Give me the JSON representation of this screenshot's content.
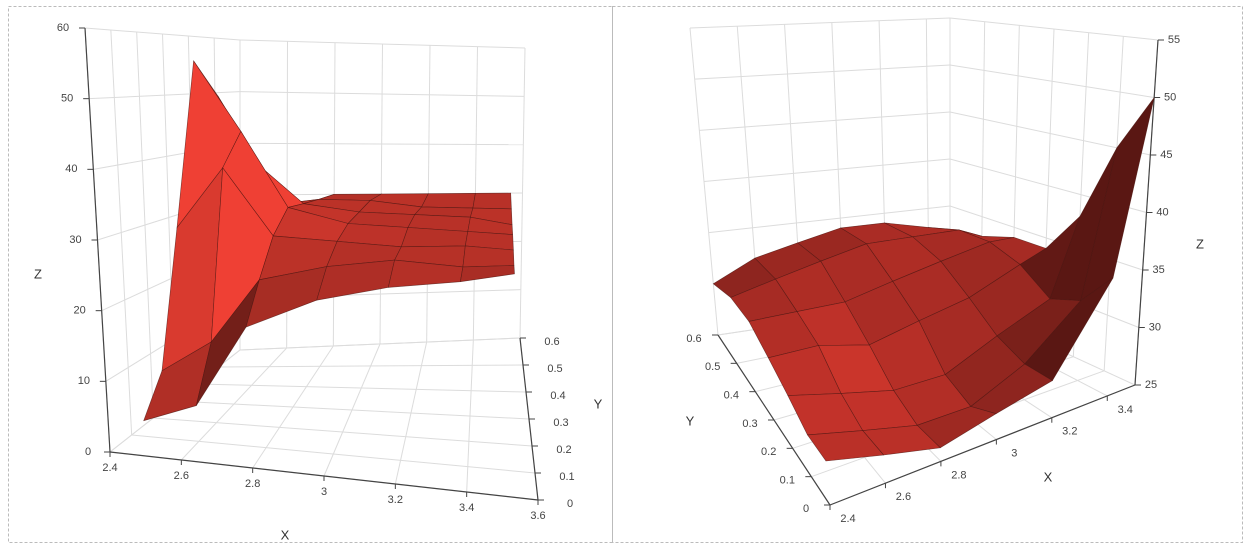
{
  "chart_data": [
    {
      "type": "surface",
      "xlabel": "X",
      "ylabel": "Y",
      "zlabel": "Z",
      "color": "#d93a2f",
      "grid": true,
      "xlim": [
        2.4,
        3.6
      ],
      "ylim": [
        0,
        0.6
      ],
      "zlim": [
        0,
        60
      ],
      "xticks": [
        2.4,
        2.6,
        2.8,
        3,
        3.2,
        3.4,
        3.6
      ],
      "yticks": [
        0,
        0.1,
        0.2,
        0.3,
        0.4,
        0.5,
        0.6
      ],
      "zticks": [
        0,
        10,
        20,
        30,
        40,
        50,
        60
      ],
      "x": [
        2.5,
        2.65,
        2.8,
        3,
        3.2,
        3.4,
        3.55
      ],
      "y": [
        0,
        0.1,
        0.2,
        0.3,
        0.4,
        0.5,
        0.6
      ],
      "z": [
        [
          5,
          8,
          20,
          25,
          28,
          30,
          32
        ],
        [
          10,
          15,
          25,
          28,
          30,
          30,
          31
        ],
        [
          30,
          40,
          30,
          30,
          30,
          31,
          31
        ],
        [
          56,
          45,
          33,
          31,
          31,
          31,
          31
        ],
        [
          50,
          38,
          32,
          31,
          31,
          31,
          30
        ],
        [
          20,
          30,
          31,
          31,
          30,
          30,
          30
        ],
        [
          8,
          25,
          30,
          30,
          30,
          30,
          30
        ]
      ]
    },
    {
      "type": "surface",
      "xlabel": "X",
      "ylabel": "Y",
      "zlabel": "Z",
      "color": "#c8342b",
      "grid": true,
      "xlim": [
        2.4,
        3.5
      ],
      "ylim": [
        0,
        0.6
      ],
      "zlim": [
        25,
        55
      ],
      "xticks": [
        2.4,
        2.6,
        2.8,
        3,
        3.2,
        3.4
      ],
      "yticks": [
        0,
        0.1,
        0.2,
        0.3,
        0.4,
        0.5,
        0.6
      ],
      "zticks": [
        25,
        30,
        35,
        40,
        45,
        50,
        55
      ],
      "x": [
        2.4,
        2.6,
        2.8,
        3,
        3.2,
        3.4,
        3.5
      ],
      "y": [
        0,
        0.1,
        0.2,
        0.3,
        0.4,
        0.5,
        0.6
      ],
      "z": [
        [
          28,
          27,
          26,
          27,
          28,
          35,
          50
        ],
        [
          28,
          27,
          26,
          26,
          28,
          32,
          45
        ],
        [
          29,
          28,
          27,
          27,
          29,
          31,
          38
        ],
        [
          30,
          30,
          29,
          30,
          31,
          33,
          34
        ],
        [
          31,
          31,
          31,
          32,
          33,
          34,
          34
        ],
        [
          31,
          32,
          33,
          34,
          34,
          34,
          33
        ],
        [
          30,
          32,
          33,
          34,
          34,
          33,
          32
        ]
      ]
    }
  ]
}
